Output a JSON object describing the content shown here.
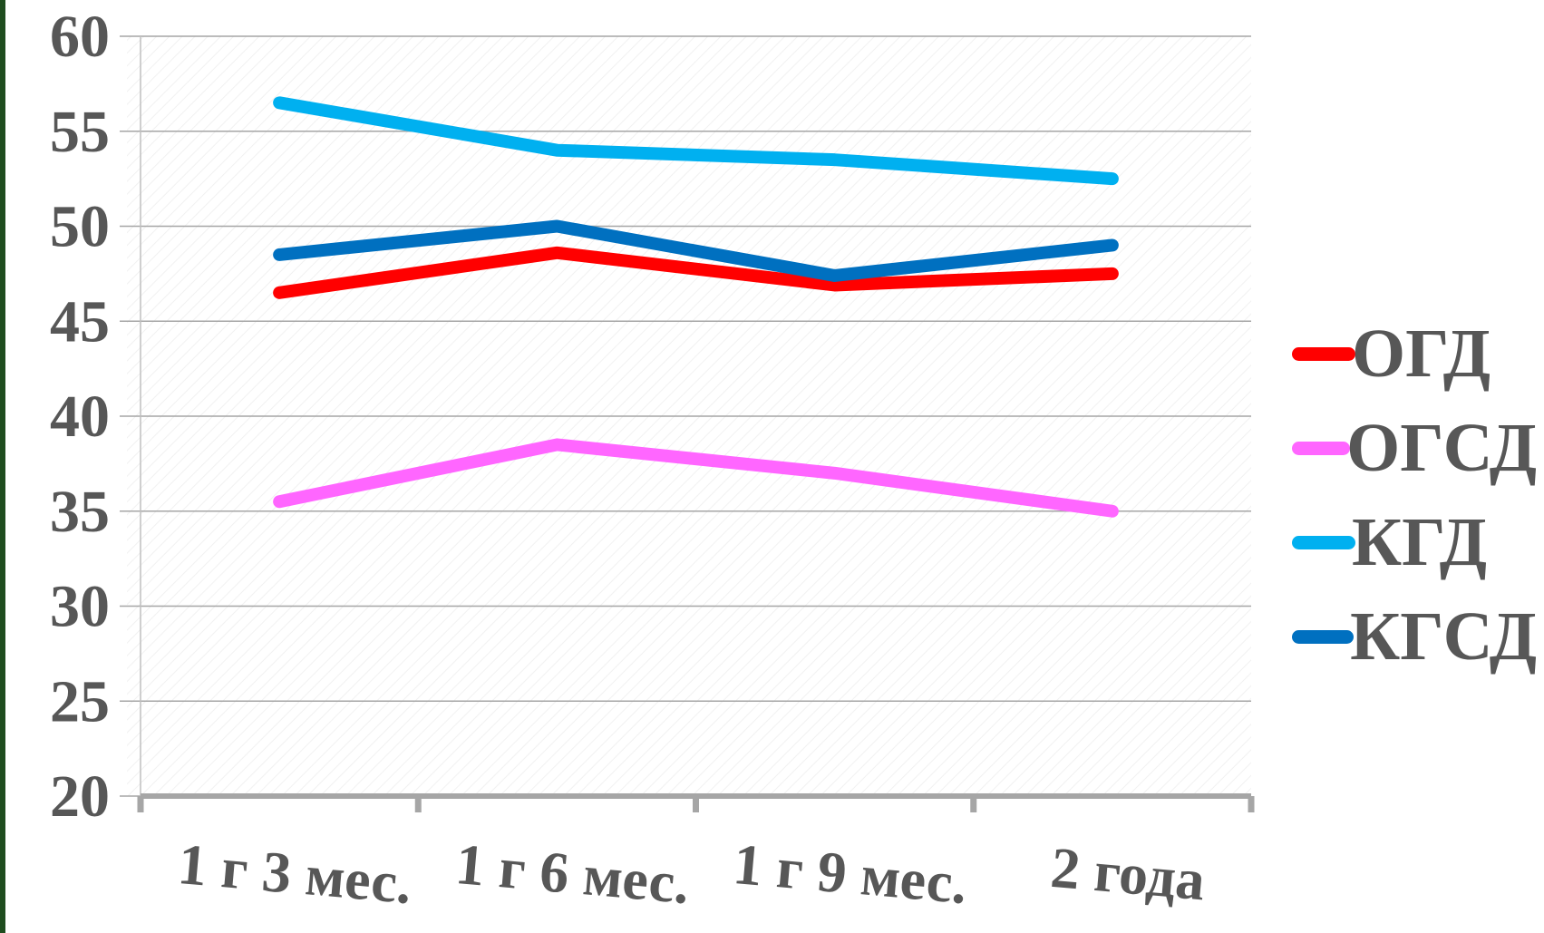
{
  "chart_data": {
    "type": "line",
    "title": "",
    "xlabel": "",
    "ylabel": "",
    "categories": [
      "1 г 3 мес.",
      "1 г 6 мес.",
      "1 г 9 мес.",
      "2 года"
    ],
    "ylim": [
      20,
      60
    ],
    "yticks": [
      "20",
      "25",
      "30",
      "35",
      "40",
      "45",
      "50",
      "55",
      "60"
    ],
    "grid": "horizontal",
    "legend_position": "right",
    "series": [
      {
        "name": "ОГД",
        "color": "#ff0000",
        "values": [
          46.5,
          48.6,
          46.9,
          47.5
        ]
      },
      {
        "name": "ОГСД",
        "color": "#ff66ff",
        "values": [
          35.5,
          38.5,
          37.0,
          35.0
        ]
      },
      {
        "name": "КГД",
        "color": "#00b0f0",
        "values": [
          56.5,
          54.0,
          53.5,
          52.5
        ]
      },
      {
        "name": "КГСД",
        "color": "#0070c0",
        "values": [
          48.5,
          50.0,
          47.4,
          49.0
        ]
      }
    ]
  }
}
